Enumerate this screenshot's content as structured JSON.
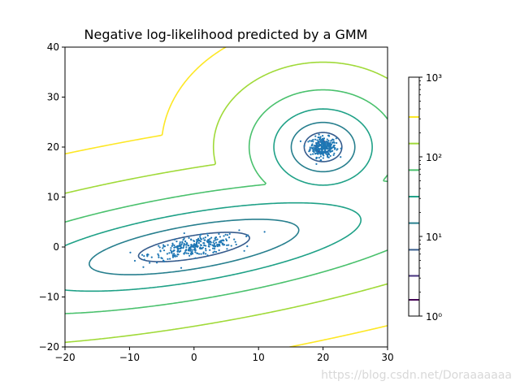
{
  "chart_data": {
    "type": "contour",
    "title": "Negative log-likelihood predicted by a GMM",
    "xlabel": "",
    "ylabel": "",
    "xlim": [
      -20,
      30
    ],
    "ylim": [
      -20,
      40
    ],
    "x_ticks": [
      -20,
      -10,
      0,
      10,
      20,
      30
    ],
    "x_tick_labels": [
      "−20",
      "−10",
      "0",
      "10",
      "20",
      "30"
    ],
    "y_ticks": [
      -20,
      -10,
      0,
      10,
      20,
      30,
      40
    ],
    "y_tick_labels": [
      "−20",
      "−10",
      "0",
      "10",
      "20",
      "30",
      "40"
    ],
    "grid": false,
    "colorbar": {
      "scale": "log",
      "range": [
        1,
        1000
      ],
      "ticks": [
        1,
        10,
        100,
        1000
      ],
      "tick_labels": [
        "10⁰",
        "10¹",
        "10²",
        "10³"
      ],
      "contour_levels": [
        1.6,
        3.2,
        6.8,
        14.7,
        31.6,
        68.1,
        146.8,
        316.2
      ],
      "level_colors": [
        "#440154",
        "#46327e",
        "#365c8d",
        "#277f8e",
        "#1fa187",
        "#4ac16d",
        "#a0da39",
        "#fde725"
      ]
    },
    "components": [
      {
        "name": "",
        "mean": [
          20,
          20
        ],
        "cov": [
          [
            1,
            0
          ],
          [
            0,
            1
          ]
        ],
        "weight": 0.5
      },
      {
        "name": "",
        "mean": [
          0,
          0
        ],
        "cov": [
          [
            12,
            2.5
          ],
          [
            2.5,
            1.4
          ]
        ],
        "weight": 0.5
      }
    ],
    "scatter_color": "#1f77b4"
  },
  "watermark": "https://blog.csdn.net/Doraaaaaaa"
}
